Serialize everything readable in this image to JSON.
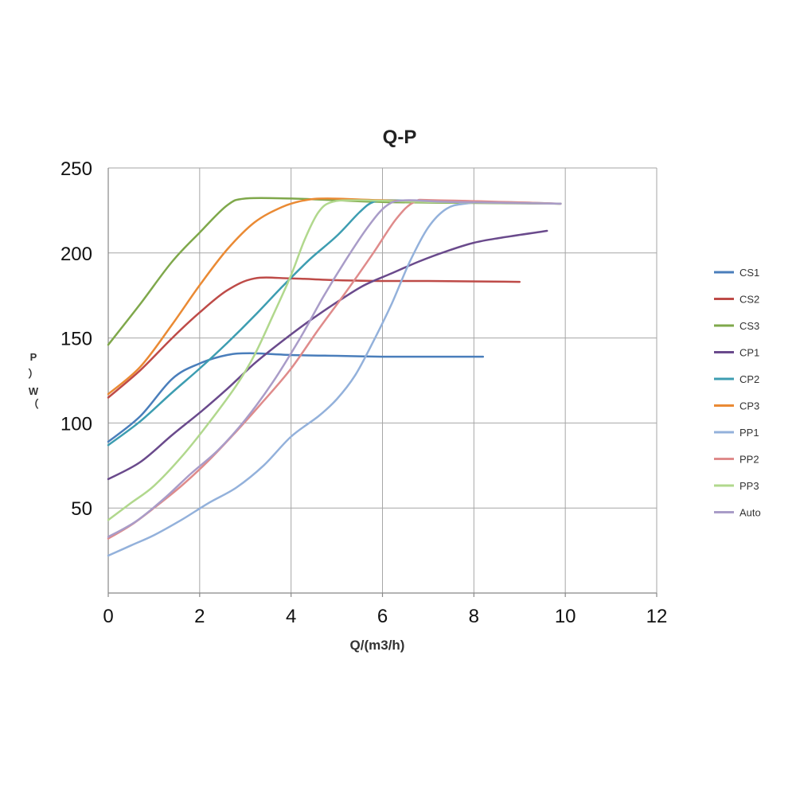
{
  "chart_data": {
    "type": "line",
    "title": "Q-P",
    "xlabel": "Q/(m3/h)",
    "ylabel_chars": [
      "P",
      "）",
      "W",
      "（"
    ],
    "xlim": [
      0,
      12
    ],
    "ylim": [
      0,
      250
    ],
    "x_ticks": [
      0,
      2,
      4,
      6,
      8,
      10,
      12
    ],
    "y_ticks": [
      50,
      100,
      150,
      200,
      250
    ],
    "x_tick_labels": [
      "0",
      "2",
      "4",
      "6",
      "8",
      "10",
      "12"
    ],
    "y_tick_labels": [
      "50",
      "100",
      "150",
      "200",
      "250"
    ],
    "grid": true,
    "legend_position": "right",
    "series": [
      {
        "name": "CS1",
        "color": "#4a7ebb",
        "points": [
          [
            0,
            89
          ],
          [
            0.7,
            104
          ],
          [
            1.4,
            126
          ],
          [
            2,
            135
          ],
          [
            2.6,
            140
          ],
          [
            3.1,
            141
          ],
          [
            4,
            140
          ],
          [
            5,
            139.5
          ],
          [
            6,
            139
          ],
          [
            7,
            139
          ],
          [
            8.2,
            139
          ]
        ]
      },
      {
        "name": "CS2",
        "color": "#be4b48",
        "points": [
          [
            0,
            115
          ],
          [
            0.7,
            131
          ],
          [
            1.4,
            150
          ],
          [
            2,
            165
          ],
          [
            2.6,
            178
          ],
          [
            3.2,
            185
          ],
          [
            4,
            185
          ],
          [
            5,
            184
          ],
          [
            6,
            183.5
          ],
          [
            7,
            183.5
          ],
          [
            9,
            183
          ]
        ]
      },
      {
        "name": "CS3",
        "color": "#7fa84b",
        "points": [
          [
            0,
            146
          ],
          [
            0.7,
            170
          ],
          [
            1.4,
            195
          ],
          [
            2,
            212
          ],
          [
            2.6,
            228
          ],
          [
            3,
            232
          ],
          [
            4,
            232
          ],
          [
            5,
            231
          ],
          [
            6,
            230
          ],
          [
            7.5,
            229.5
          ],
          [
            9.9,
            229
          ]
        ]
      },
      {
        "name": "CP1",
        "color": "#6a4a8c",
        "points": [
          [
            0,
            67
          ],
          [
            0.7,
            77
          ],
          [
            1.4,
            93
          ],
          [
            2,
            106
          ],
          [
            2.6,
            120
          ],
          [
            3.2,
            135
          ],
          [
            3.8,
            148
          ],
          [
            4.4,
            160
          ],
          [
            5,
            171
          ],
          [
            5.6,
            181
          ],
          [
            6.2,
            188
          ],
          [
            6.8,
            195
          ],
          [
            7.4,
            201
          ],
          [
            8,
            206
          ],
          [
            8.6,
            209
          ],
          [
            9.6,
            213
          ]
        ]
      },
      {
        "name": "CP2",
        "color": "#3d9db1",
        "points": [
          [
            0,
            87
          ],
          [
            0.7,
            101
          ],
          [
            1.4,
            118
          ],
          [
            2,
            132
          ],
          [
            2.6,
            147
          ],
          [
            3.2,
            163
          ],
          [
            3.8,
            180
          ],
          [
            4.4,
            196
          ],
          [
            5,
            210
          ],
          [
            5.5,
            224
          ],
          [
            5.8,
            230
          ],
          [
            6.2,
            231
          ],
          [
            7.5,
            230
          ],
          [
            9.9,
            229
          ]
        ]
      },
      {
        "name": "CP3",
        "color": "#ea8a34",
        "points": [
          [
            0,
            117
          ],
          [
            0.7,
            133
          ],
          [
            1.4,
            158
          ],
          [
            2,
            181
          ],
          [
            2.6,
            202
          ],
          [
            3.2,
            218
          ],
          [
            3.8,
            227
          ],
          [
            4.3,
            231
          ],
          [
            4.8,
            232
          ],
          [
            6,
            231
          ],
          [
            7.5,
            230
          ],
          [
            9.9,
            229
          ]
        ]
      },
      {
        "name": "PP1",
        "color": "#93b1db",
        "points": [
          [
            0,
            22
          ],
          [
            0.5,
            28
          ],
          [
            1,
            34
          ],
          [
            1.6,
            43
          ],
          [
            2.2,
            53
          ],
          [
            2.8,
            62
          ],
          [
            3.4,
            75
          ],
          [
            4,
            92
          ],
          [
            4.6,
            104
          ],
          [
            5,
            114
          ],
          [
            5.4,
            128
          ],
          [
            5.8,
            148
          ],
          [
            6.2,
            170
          ],
          [
            6.6,
            195
          ],
          [
            7,
            215
          ],
          [
            7.4,
            226
          ],
          [
            7.8,
            229
          ],
          [
            8.4,
            230
          ],
          [
            9.9,
            229
          ]
        ]
      },
      {
        "name": "PP2",
        "color": "#df8b8b",
        "points": [
          [
            0,
            32
          ],
          [
            0.5,
            40
          ],
          [
            1,
            50
          ],
          [
            1.6,
            63
          ],
          [
            2.2,
            78
          ],
          [
            2.8,
            95
          ],
          [
            3.4,
            113
          ],
          [
            4,
            132
          ],
          [
            4.6,
            155
          ],
          [
            5.2,
            177
          ],
          [
            5.8,
            200
          ],
          [
            6.3,
            220
          ],
          [
            6.7,
            230
          ],
          [
            7.2,
            231
          ],
          [
            9.9,
            229
          ]
        ]
      },
      {
        "name": "PP3",
        "color": "#b1d88d",
        "points": [
          [
            0,
            43
          ],
          [
            0.5,
            53
          ],
          [
            1,
            63
          ],
          [
            1.6,
            80
          ],
          [
            2.2,
            100
          ],
          [
            2.8,
            122
          ],
          [
            3.2,
            140
          ],
          [
            3.6,
            163
          ],
          [
            4,
            187
          ],
          [
            4.3,
            208
          ],
          [
            4.6,
            224
          ],
          [
            4.9,
            230
          ],
          [
            5.5,
            231
          ],
          [
            7,
            230
          ],
          [
            9.9,
            229
          ]
        ]
      },
      {
        "name": "Auto",
        "color": "#a99cc8",
        "points": [
          [
            0,
            33
          ],
          [
            0.6,
            42
          ],
          [
            1.2,
            55
          ],
          [
            1.8,
            70
          ],
          [
            2.4,
            84
          ],
          [
            3,
            102
          ],
          [
            3.6,
            124
          ],
          [
            4.2,
            150
          ],
          [
            4.7,
            174
          ],
          [
            5.2,
            196
          ],
          [
            5.7,
            216
          ],
          [
            6.1,
            228
          ],
          [
            6.5,
            231
          ],
          [
            7.5,
            230
          ],
          [
            9.9,
            229
          ]
        ]
      }
    ]
  }
}
